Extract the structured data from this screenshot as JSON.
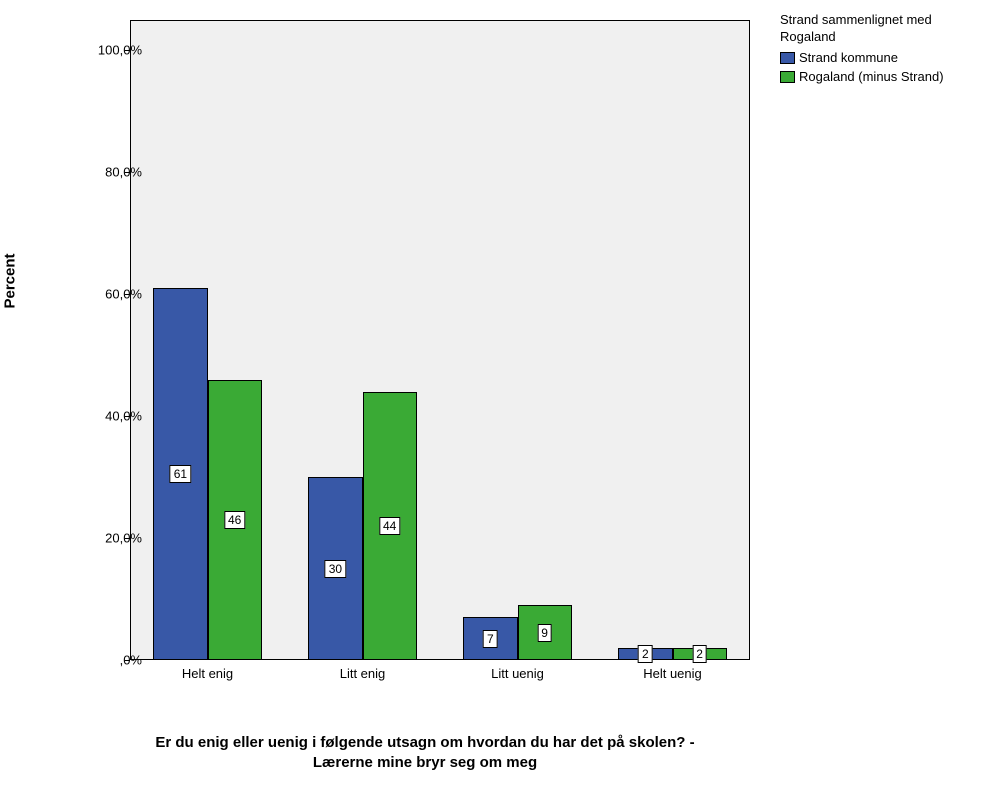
{
  "chart": {
    "type": "bar",
    "background_color": "#f0f0f0",
    "page_background": "#ffffff",
    "border_color": "#000000",
    "ylabel": "Percent",
    "ylabel_fontsize": 15,
    "xlabel": "Er du enig eller uenig i følgende utsagn om hvordan du har det på skolen? - Lærerne mine bryr seg om meg",
    "xlabel_fontsize": 15,
    "ylim": [
      0,
      105
    ],
    "ytick_labels": [
      ",0%",
      "20,0%",
      "40,0%",
      "60,0%",
      "80,0%",
      "100,0%"
    ],
    "ytick_values": [
      0,
      20,
      40,
      60,
      80,
      100
    ],
    "categories": [
      "Helt enig",
      "Litt enig",
      "Litt uenig",
      "Helt uenig"
    ],
    "series": [
      {
        "name": "Strand kommune",
        "color": "#3858a7",
        "values": [
          61,
          30,
          7,
          2
        ]
      },
      {
        "name": "Rogaland (minus Strand)",
        "color": "#3aaa35",
        "values": [
          46,
          44,
          9,
          2
        ]
      }
    ],
    "legend": {
      "title": "Strand sammenlignet med Rogaland",
      "title_fontsize": 13,
      "item_fontsize": 13
    },
    "bar_width_ratio": 0.4,
    "group_gap": 0.15
  }
}
